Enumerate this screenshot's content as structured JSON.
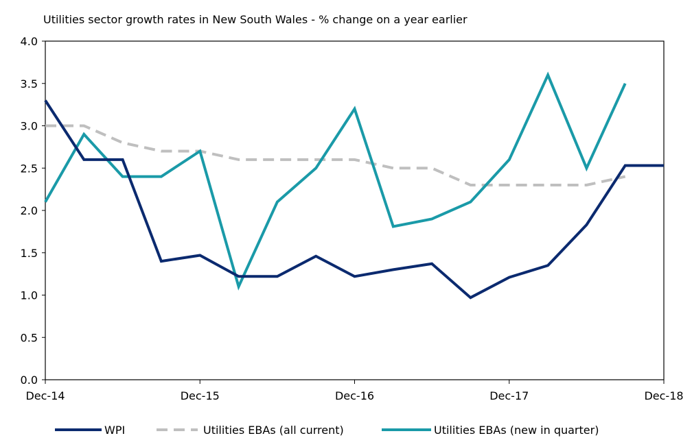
{
  "chart_data": {
    "type": "line",
    "title": "Utilities sector growth rates in New South Wales - % change on a year earlier",
    "xlabel": "",
    "ylabel": "",
    "x": [
      "Dec-14",
      "Mar-15",
      "Jun-15",
      "Sep-15",
      "Dec-15",
      "Mar-16",
      "Jun-16",
      "Sep-16",
      "Dec-16",
      "Mar-17",
      "Jun-17",
      "Sep-17",
      "Dec-17",
      "Mar-18",
      "Jun-18",
      "Sep-18",
      "Dec-18"
    ],
    "x_tick_labels": [
      "Dec-14",
      "Dec-15",
      "Dec-16",
      "Dec-17",
      "Dec-18"
    ],
    "y_tick_labels": [
      "0.0",
      "0.5",
      "1.0",
      "1.5",
      "2.0",
      "2.5",
      "3.0",
      "3.5",
      "4.0"
    ],
    "ylim": [
      0,
      4
    ],
    "grid": false,
    "legend_position": "bottom",
    "series": [
      {
        "name": "WPI",
        "color": "#0b2a6f",
        "dash": "solid",
        "values": [
          3.3,
          2.6,
          2.6,
          1.4,
          1.47,
          1.22,
          1.22,
          1.46,
          1.22,
          1.3,
          1.37,
          0.97,
          1.21,
          1.35,
          1.83,
          2.53,
          2.53
        ]
      },
      {
        "name": "Utilities EBAs (all current)",
        "color": "#bfbfbf",
        "dash": "dashed",
        "values": [
          3.0,
          3.0,
          2.8,
          2.7,
          2.7,
          2.6,
          2.6,
          2.6,
          2.6,
          2.5,
          2.5,
          2.3,
          2.3,
          2.3,
          2.3,
          2.4,
          null
        ]
      },
      {
        "name": "Utilities EBAs (new in quarter)",
        "color": "#1a9aa8",
        "dash": "solid",
        "values": [
          2.1,
          2.9,
          2.4,
          2.4,
          2.7,
          1.1,
          2.1,
          2.5,
          3.2,
          1.81,
          1.9,
          2.1,
          2.6,
          3.6,
          2.5,
          3.5,
          null
        ]
      }
    ]
  }
}
